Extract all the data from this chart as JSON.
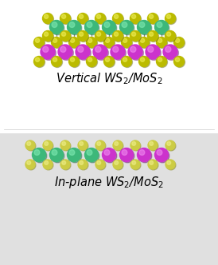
{
  "fig_width": 2.74,
  "fig_height": 3.32,
  "dpi": 100,
  "bg_color_top": "#ffffff",
  "bg_color_bot": "#e8e8e8",
  "W_color": "#3db87a",
  "W_hi": "#7de8b0",
  "W_sh": "#1a6640",
  "Mo_color": "#cc33cc",
  "Mo_hi": "#ee88ee",
  "Mo_sh": "#661266",
  "S_color": "#bbbb00",
  "S_hi": "#eeee55",
  "S_sh": "#666600",
  "S2_color": "#cccc44",
  "S2_hi": "#eeee88",
  "S2_sh": "#777700",
  "bond_top": "#999999",
  "bond_bot": "#aaaaaa",
  "label1": "Vertical WS$_2$/MoS$_2$",
  "label2": "In-plane WS$_2$/MoS$_2$",
  "font_size": 10.5
}
